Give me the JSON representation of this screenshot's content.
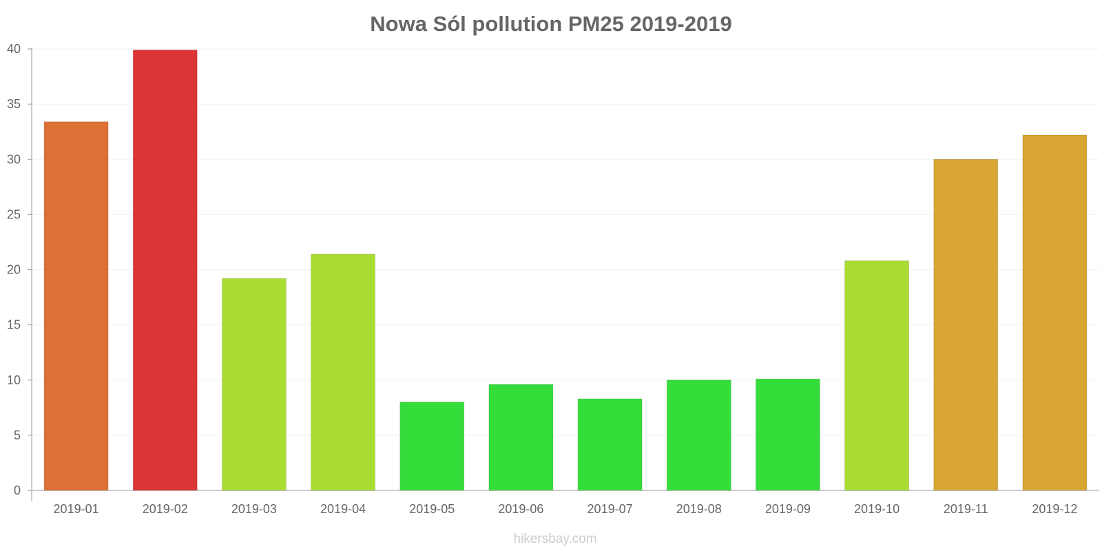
{
  "chart_data": {
    "type": "bar",
    "title": "Nowa Sól pollution PM25 2019-2019",
    "xlabel": "",
    "ylabel": "",
    "ylim": [
      0,
      40
    ],
    "yticks": [
      0,
      5,
      10,
      15,
      20,
      25,
      30,
      35,
      40
    ],
    "categories": [
      "2019-01",
      "2019-02",
      "2019-03",
      "2019-04",
      "2019-05",
      "2019-06",
      "2019-07",
      "2019-08",
      "2019-09",
      "2019-10",
      "2019-11",
      "2019-12"
    ],
    "values": [
      33.4,
      39.9,
      19.2,
      21.4,
      8.0,
      9.6,
      8.3,
      10.0,
      10.1,
      20.8,
      30.0,
      32.2
    ],
    "colors": [
      "#dd7034",
      "#dc3535",
      "#aadd34",
      "#aadd34",
      "#35dd3b",
      "#35dd3b",
      "#35dd3b",
      "#35dd3b",
      "#35dd3b",
      "#aadd34",
      "#d9a634",
      "#d9a634"
    ],
    "grid": true
  },
  "watermark": "hikersbay.com"
}
